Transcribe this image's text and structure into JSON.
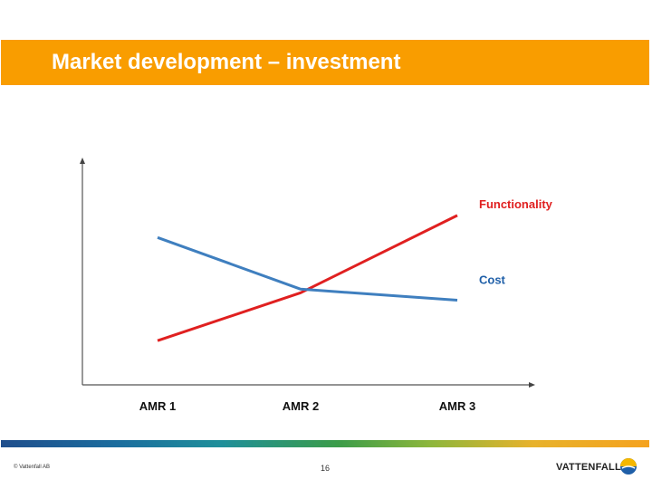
{
  "header": {
    "title": "Market development – investment"
  },
  "footer": {
    "copyright": "© Vattenfall AB",
    "page_number": "16",
    "logo_text": "VATTENFALL"
  },
  "colors": {
    "title_band": "#f99d00",
    "functionality": "#e02020",
    "cost": "#3f7fbf",
    "axis": "#555555"
  },
  "icons": {
    "logo": "vattenfall-logo-icon"
  },
  "chart_data": {
    "type": "line",
    "categories": [
      "AMR 1",
      "AMR 2",
      "AMR 3"
    ],
    "series": [
      {
        "name": "Functionality",
        "values": [
          1.2,
          2.5,
          4.6
        ]
      },
      {
        "name": "Cost",
        "values": [
          4.0,
          2.6,
          2.3
        ]
      }
    ],
    "ylim": [
      0,
      6
    ],
    "grid": false,
    "legend": "right-end labels"
  }
}
